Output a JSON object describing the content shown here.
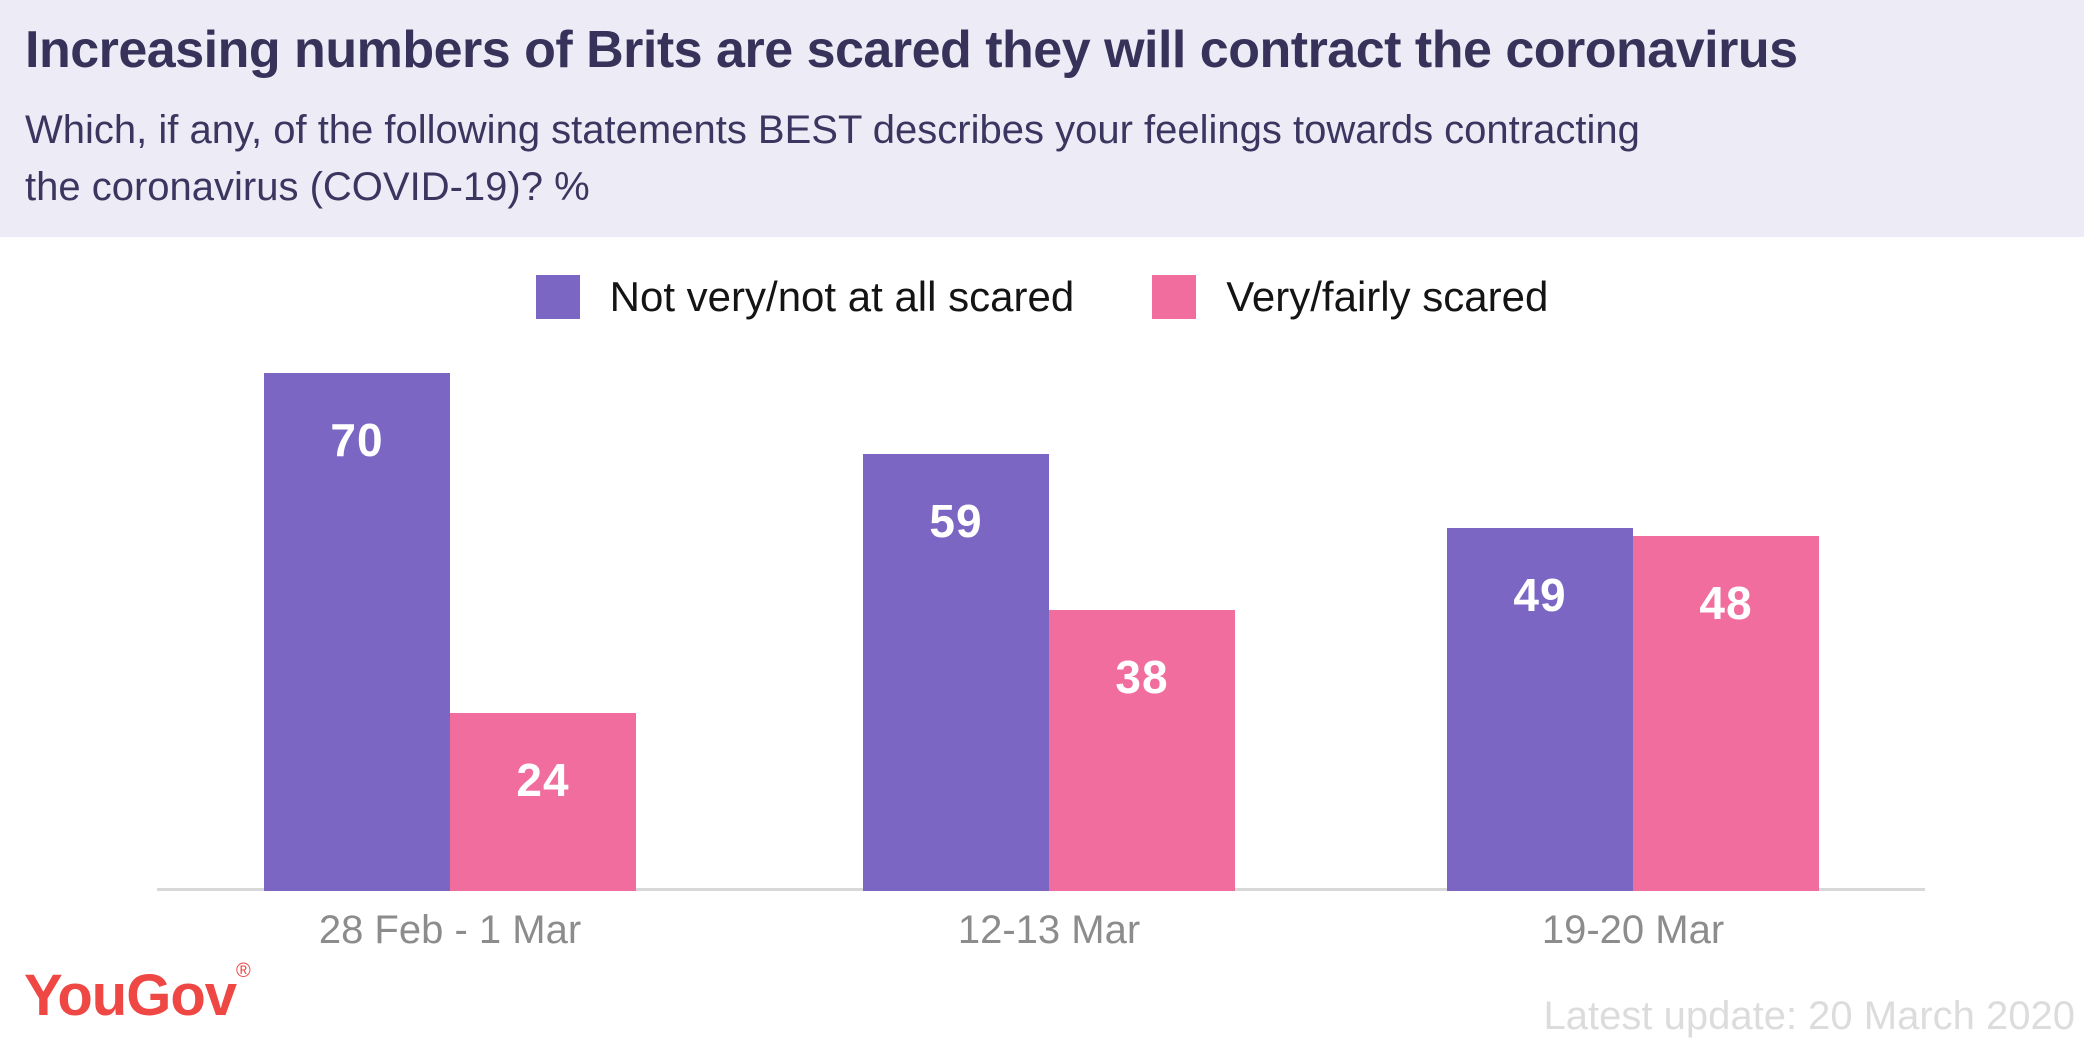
{
  "header": {
    "title": "Increasing numbers of Brits are scared they will contract the coronavirus",
    "subtitle_lines": [
      "Which, if any, of the following statements BEST describes your feelings towards contracting",
      "the coronavirus (COVID-19)? %"
    ]
  },
  "legend": {
    "items": [
      {
        "label": "Not very/not at all scared",
        "color": "#7B66C4"
      },
      {
        "label": "Very/fairly scared",
        "color": "#F06D9D"
      }
    ]
  },
  "chart_data": {
    "type": "bar",
    "title": "Increasing numbers of Brits are scared they will contract the coronavirus",
    "subtitle": "Which, if any, of the following statements BEST describes your feelings towards contracting the coronavirus (COVID-19)? %",
    "unit": "%",
    "categories": [
      "28 Feb - 1 Mar",
      "12-13 Mar",
      "19-20 Mar"
    ],
    "series": [
      {
        "name": "Not very/not at all scared",
        "color": "#7B66C4",
        "values": [
          70,
          59,
          49
        ]
      },
      {
        "name": "Very/fairly scared",
        "color": "#F06D9D",
        "values": [
          24,
          38,
          48
        ]
      }
    ],
    "xlabel": "",
    "ylabel": "",
    "ylim": [
      0,
      75
    ],
    "grid": false,
    "y_axis_visible": false,
    "legend_position": "top-center",
    "value_labels": "inside-top"
  },
  "footer": {
    "logo_text": "YouGov",
    "registered_mark": "®",
    "update_text": "Latest update: 20 March 2020"
  },
  "colors": {
    "header_bg": "#EDEBF6",
    "title_text": "#37325A",
    "subtitle_text": "#3B3660",
    "bar_purple": "#7B66C4",
    "bar_pink": "#F06D9D",
    "value_label": "#FFFFFF",
    "legend_text": "#141414",
    "axis_line": "#D8D8D8",
    "axis_label": "#8C8C8C",
    "update_text": "#DCDCDC",
    "logo_red": "#EE4744"
  }
}
